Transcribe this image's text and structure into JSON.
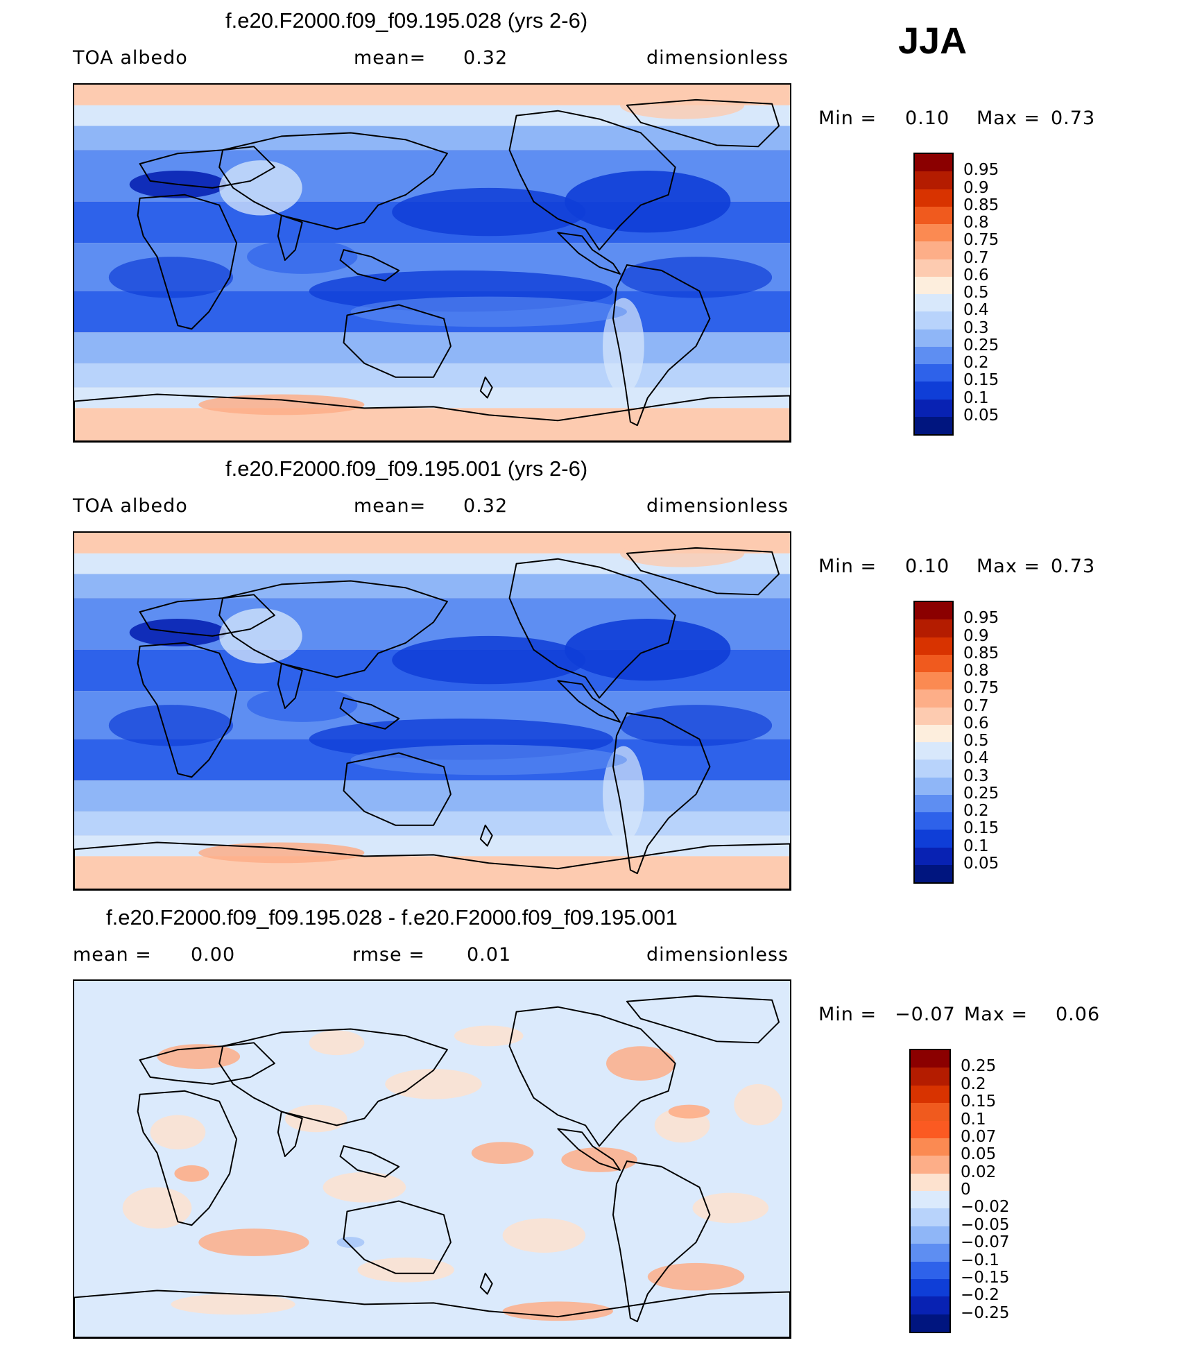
{
  "season": "JJA",
  "panels": [
    {
      "title": "f.e20.F2000.f09_f09.195.028 (yrs 2-6)",
      "left_label": "TOA albedo",
      "center_label": "mean=",
      "center_value": "0.32",
      "right_label": "dimensionless",
      "min_label": "Min =",
      "min_value": "0.10",
      "max_label": "Max =",
      "max_value": "0.73",
      "palette": "absolute"
    },
    {
      "title": "f.e20.F2000.f09_f09.195.001 (yrs 2-6)",
      "left_label": "TOA albedo",
      "center_label": "mean=",
      "center_value": "0.32",
      "right_label": "dimensionless",
      "min_label": "Min =",
      "min_value": "0.10",
      "max_label": "Max =",
      "max_value": "0.73",
      "palette": "absolute"
    },
    {
      "title": "f.e20.F2000.f09_f09.195.028 - f.e20.F2000.f09_f09.195.001",
      "left_label": "mean =",
      "left_value": "0.00",
      "center_label": "rmse =",
      "center_value": "0.01",
      "right_label": "dimensionless",
      "min_label": "Min =",
      "min_value": "−0.07",
      "max_label": "Max =",
      "max_value": "0.06",
      "palette": "difference"
    }
  ],
  "colorbars": {
    "absolute": {
      "labels": [
        "0.95",
        "0.9",
        "0.85",
        "0.8",
        "0.75",
        "0.7",
        "0.6",
        "0.5",
        "0.4",
        "0.3",
        "0.25",
        "0.2",
        "0.15",
        "0.1",
        "0.05"
      ],
      "colors": [
        "#8b0000",
        "#b41c00",
        "#d83300",
        "#f05a1e",
        "#fb8a52",
        "#fdae88",
        "#fdcbb0",
        "#fdeedd",
        "#d8e8fb",
        "#b8d3fb",
        "#8fb6f7",
        "#5e8ef2",
        "#2e62ea",
        "#0f3ed7",
        "#0822b3",
        "#00157f"
      ]
    },
    "difference": {
      "labels": [
        "0.25",
        "0.2",
        "0.15",
        "0.1",
        "0.07",
        "0.05",
        "0.02",
        "0",
        "−0.02",
        "−0.05",
        "−0.07",
        "−0.1",
        "−0.15",
        "−0.2",
        "−0.25"
      ],
      "colors": [
        "#8b0000",
        "#b41c00",
        "#d83300",
        "#f05a1e",
        "#fb5a22",
        "#fb8a52",
        "#fdae88",
        "#fde2cf",
        "#dbeafc",
        "#b8d3fb",
        "#8fb6f7",
        "#5e8ef2",
        "#2e62ea",
        "#0f3ed7",
        "#0822b3",
        "#00157f"
      ]
    }
  }
}
